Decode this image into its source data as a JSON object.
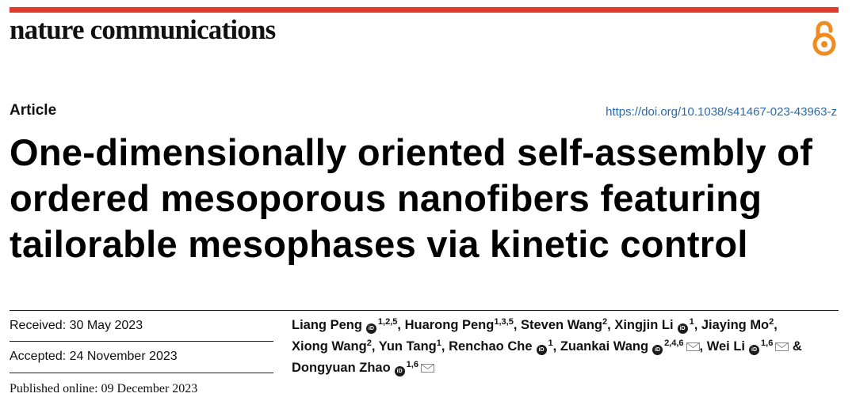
{
  "colors": {
    "accent": "#e1392b",
    "doi_link": "#2a6aa8",
    "open_access_orange": "#f08c1f"
  },
  "header": {
    "journal": "nature communications",
    "open_access_icon": "open-access-lock-icon"
  },
  "article": {
    "type": "Article",
    "doi": "https://doi.org/10.1038/s41467-023-43963-z",
    "title": "One-dimensionally oriented self-assembly of ordered mesoporous nanofibers featuring tailorable mesophases via kinetic control"
  },
  "dates": {
    "received": "Received: 30 May 2023",
    "accepted": "Accepted: 24 November 2023",
    "published": "Published online: 09 December 2023"
  },
  "authors": [
    {
      "name": "Liang Peng",
      "sup": "1,2,5",
      "orcid": true,
      "mail": false,
      "sep": ","
    },
    {
      "name": "Huarong Peng",
      "sup": "1,3,5",
      "orcid": false,
      "mail": false,
      "sep": ","
    },
    {
      "name": "Steven Wang",
      "sup": "2",
      "orcid": false,
      "mail": false,
      "sep": ","
    },
    {
      "name": "Xingjin Li",
      "sup": "1",
      "orcid": true,
      "mail": false,
      "sep": ","
    },
    {
      "name": "Jiaying Mo",
      "sup": "2",
      "orcid": false,
      "mail": false,
      "sep": ","
    },
    {
      "name": "Xiong Wang",
      "sup": "2",
      "orcid": false,
      "mail": false,
      "sep": ","
    },
    {
      "name": "Yun Tang",
      "sup": "1",
      "orcid": false,
      "mail": false,
      "sep": ","
    },
    {
      "name": "Renchao Che",
      "sup": "1",
      "orcid": true,
      "mail": false,
      "sep": ","
    },
    {
      "name": "Zuankai Wang",
      "sup": "2,4,6",
      "orcid": true,
      "mail": true,
      "sep": ","
    },
    {
      "name": "Wei Li",
      "sup": "1,6",
      "orcid": true,
      "mail": true,
      "sep": " &"
    },
    {
      "name": "Dongyuan Zhao",
      "sup": "1,6",
      "orcid": true,
      "mail": true,
      "sep": ""
    }
  ]
}
